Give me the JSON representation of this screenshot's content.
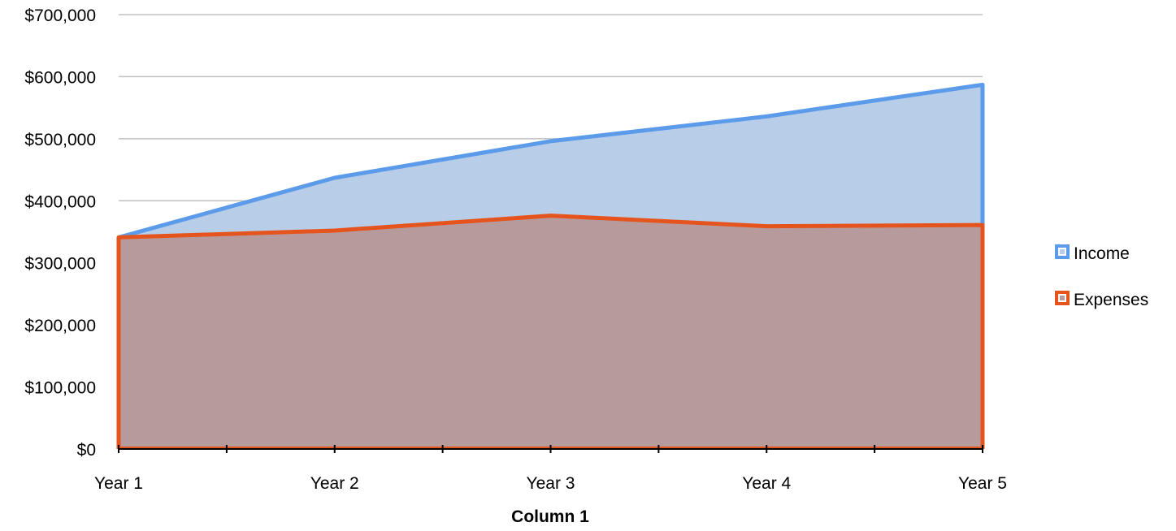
{
  "chart_data": {
    "type": "area",
    "title": "",
    "xlabel": "Column 1",
    "ylabel": "",
    "categories": [
      "Year 1",
      "Year 2",
      "Year 3",
      "Year 4",
      "Year 5"
    ],
    "series": [
      {
        "name": "Income",
        "values": [
          341000,
          437000,
          496000,
          536000,
          587000
        ],
        "line_color": "#5b9bea",
        "fill_color": "#b8cde8"
      },
      {
        "name": "Expenses",
        "values": [
          341000,
          352000,
          376000,
          359000,
          361000
        ],
        "line_color": "#e5541d",
        "fill_color": "#b79a9c"
      }
    ],
    "ylim": [
      0,
      700000
    ],
    "yticks": [
      0,
      100000,
      200000,
      300000,
      400000,
      500000,
      600000,
      700000
    ],
    "ytick_labels": [
      "$0",
      "$100,000",
      "$200,000",
      "$300,000",
      "$400,000",
      "$500,000",
      "$600,000",
      "$700,000"
    ],
    "grid": true,
    "legend_position": "right",
    "grid_color": "#c0c0c0"
  }
}
